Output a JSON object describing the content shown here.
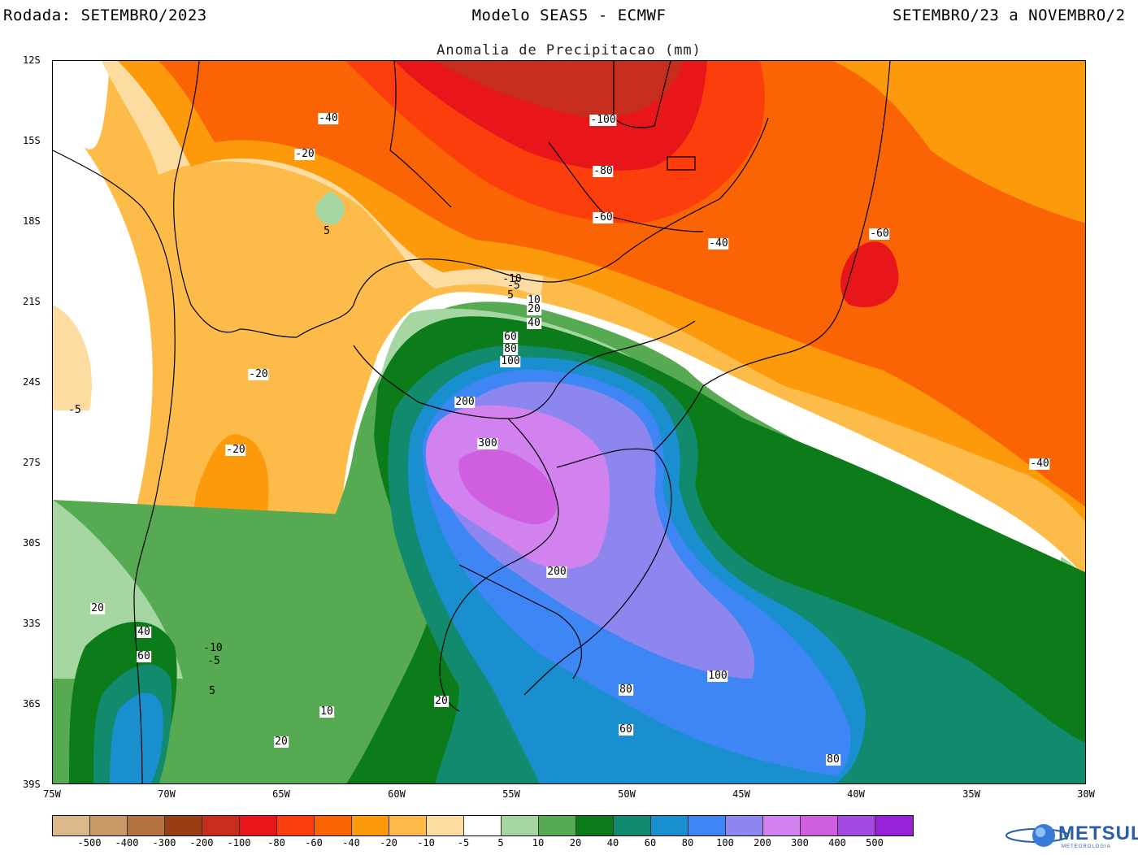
{
  "header": {
    "left": "Rodada: SETEMBRO/2023",
    "center": "Modelo SEAS5 - ECMWF",
    "right": "SETEMBRO/23 a NOVEMBRO/2"
  },
  "subtitle": "Anomalia de Precipitacao (mm)",
  "map": {
    "lat_labels": [
      "12S",
      "15S",
      "18S",
      "21S",
      "24S",
      "27S",
      "30S",
      "33S",
      "36S",
      "39S"
    ],
    "lon_labels": [
      "75W",
      "70W",
      "65W",
      "60W",
      "55W",
      "50W",
      "45W",
      "40W",
      "35W",
      "30W"
    ],
    "contour_labels": [
      "-40",
      "-100",
      "-20",
      "-80",
      "-60",
      "5",
      "-40",
      "-60",
      "-10",
      "-5",
      "5",
      "10",
      "20",
      "40",
      "60",
      "80",
      "100",
      "-5",
      "-20",
      "200",
      "300",
      "-20",
      "-40",
      "200",
      "20",
      "40",
      "60",
      "-10",
      "-5",
      "100",
      "5",
      "80",
      "20",
      "10",
      "60",
      "20",
      "80"
    ]
  },
  "legend": {
    "tick_labels": [
      "-500",
      "-400",
      "-300",
      "-200",
      "-100",
      "-80",
      "-60",
      "-40",
      "-20",
      "-10",
      "-5",
      "5",
      "10",
      "20",
      "40",
      "60",
      "80",
      "100",
      "200",
      "300",
      "400",
      "500"
    ],
    "colors": [
      "#dbb98a",
      "#c69a66",
      "#b27242",
      "#993d14",
      "#c62d1c",
      "#e8161a",
      "#fc3d0c",
      "#fb6405",
      "#fd9a0c",
      "#fdbc4a",
      "#fddca2",
      "#ffffff",
      "#a6d6a1",
      "#56ab52",
      "#0c7c1a",
      "#118a6e",
      "#1a8fd0",
      "#3f86f5",
      "#8c86ee",
      "#d182ef",
      "#cf5ee0",
      "#a34ae0",
      "#9622d8"
    ]
  },
  "logo": {
    "name": "METSUL",
    "tagline": "METEOROLOGIA"
  }
}
